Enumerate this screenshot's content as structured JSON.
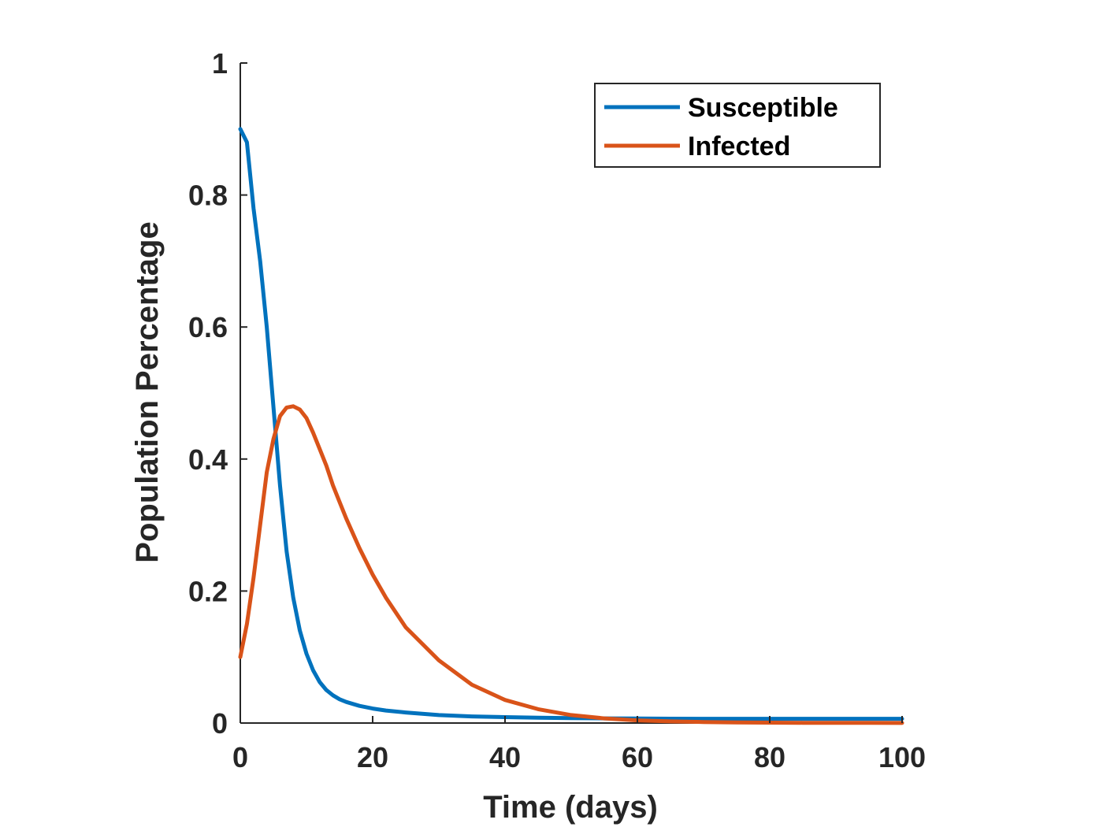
{
  "chart_data": {
    "type": "line",
    "xlabel": "Time (days)",
    "ylabel": "Population Percentage",
    "xlim": [
      0,
      100
    ],
    "ylim": [
      0,
      1
    ],
    "xticks": [
      0,
      20,
      40,
      60,
      80,
      100
    ],
    "yticks": [
      0,
      0.2,
      0.4,
      0.6,
      0.8,
      1
    ],
    "xtick_labels": [
      "0",
      "20",
      "40",
      "60",
      "80",
      "100"
    ],
    "ytick_labels": [
      "0",
      "0.2",
      "0.4",
      "0.6",
      "0.8",
      "1"
    ],
    "grid": false,
    "legend_position": "top-right",
    "x": [
      0,
      1,
      2,
      3,
      4,
      5,
      6,
      7,
      8,
      9,
      10,
      11,
      12,
      13,
      14,
      15,
      16,
      18,
      20,
      22,
      25,
      30,
      35,
      40,
      45,
      50,
      55,
      60,
      65,
      70,
      75,
      80,
      85,
      90,
      95,
      100
    ],
    "series": [
      {
        "name": "Susceptible",
        "color": "#0072BD",
        "values": [
          0.9,
          0.88,
          0.78,
          0.7,
          0.6,
          0.48,
          0.36,
          0.26,
          0.19,
          0.14,
          0.105,
          0.08,
          0.062,
          0.05,
          0.042,
          0.036,
          0.032,
          0.026,
          0.022,
          0.019,
          0.016,
          0.012,
          0.01,
          0.009,
          0.008,
          0.0075,
          0.007,
          0.0068,
          0.0066,
          0.0065,
          0.0065,
          0.0064,
          0.0064,
          0.0064,
          0.0064,
          0.0064
        ]
      },
      {
        "name": "Infected",
        "color": "#D95319",
        "values": [
          0.1,
          0.15,
          0.22,
          0.3,
          0.38,
          0.43,
          0.465,
          0.478,
          0.48,
          0.475,
          0.462,
          0.44,
          0.415,
          0.39,
          0.36,
          0.335,
          0.31,
          0.265,
          0.225,
          0.19,
          0.145,
          0.095,
          0.058,
          0.035,
          0.021,
          0.012,
          0.007,
          0.004,
          0.0025,
          0.0015,
          0.001,
          0.0006,
          0.0004,
          0.0003,
          0.0002,
          0.0001
        ]
      }
    ]
  }
}
